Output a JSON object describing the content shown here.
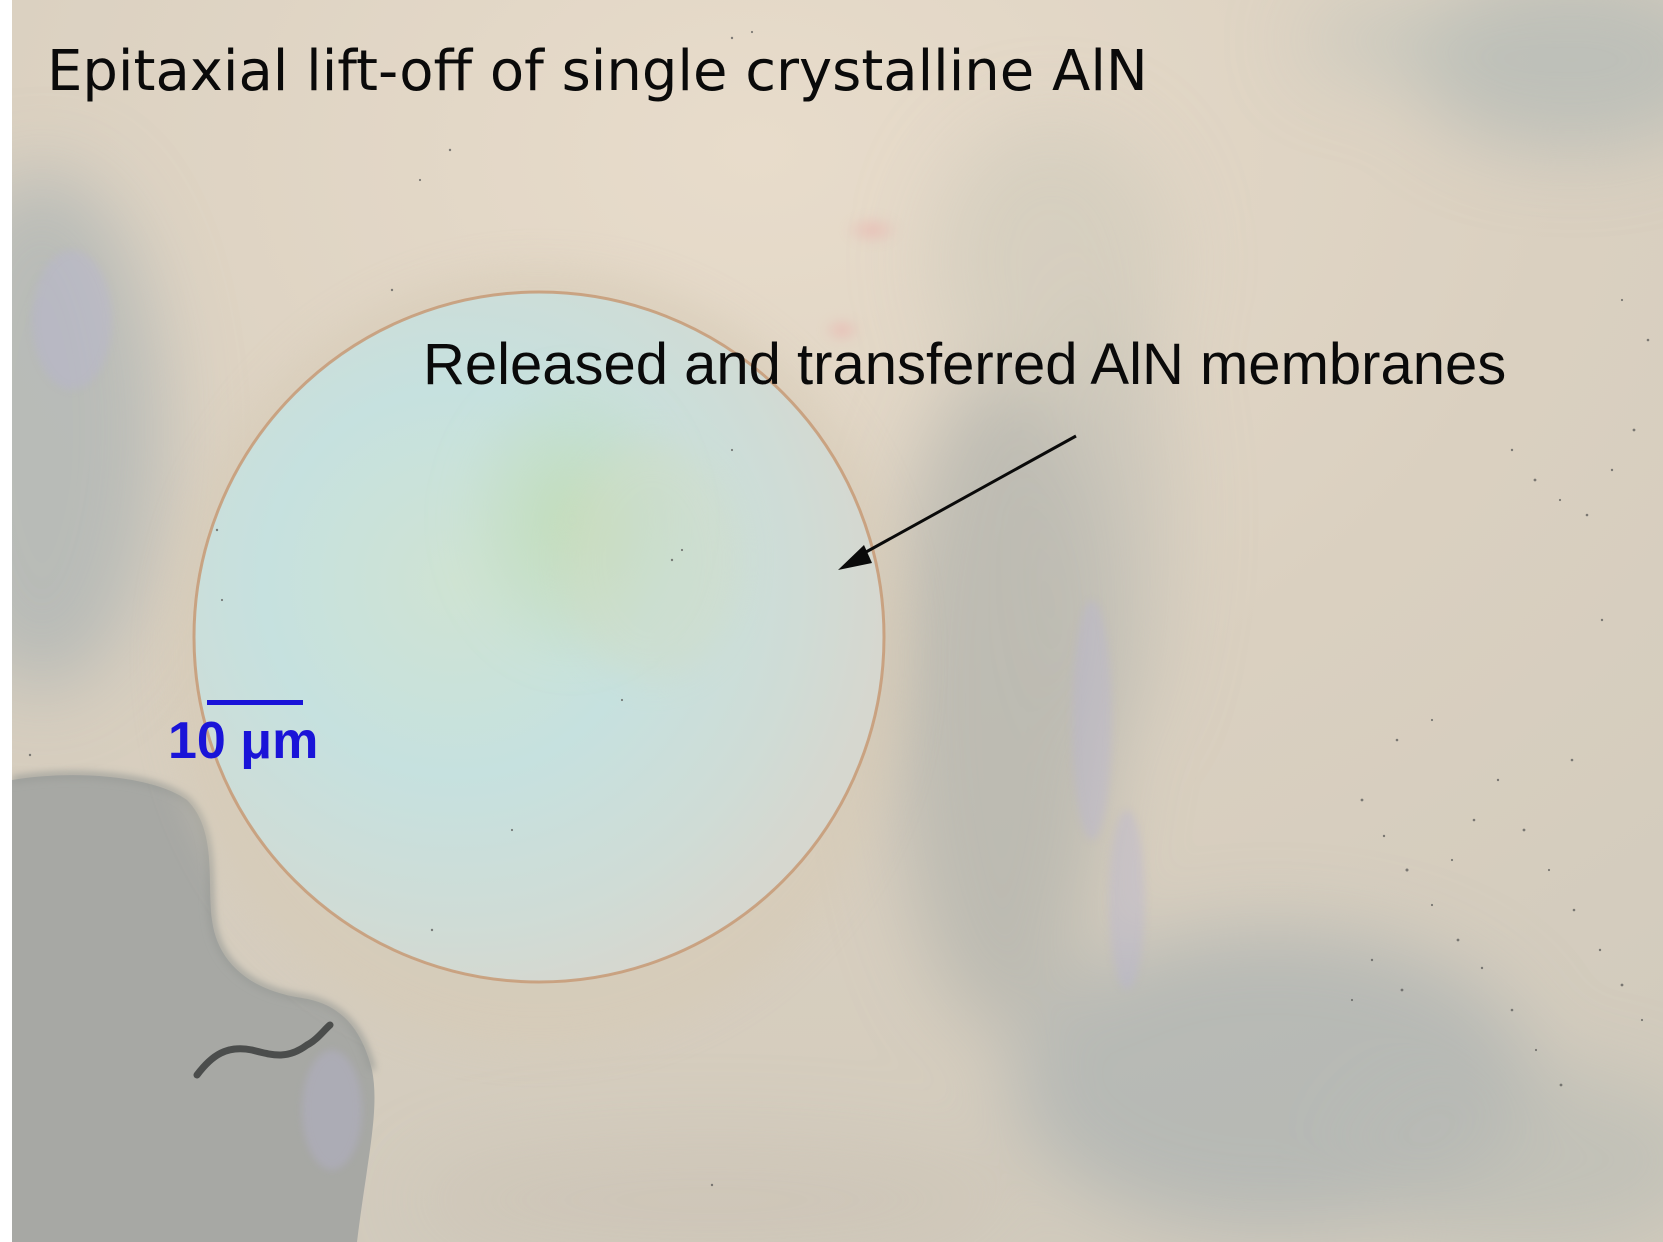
{
  "figure": {
    "title": "Epitaxial lift-off of single crystalline AlN",
    "annotation": "Released and transferred AlN membranes",
    "scale_bar_label": "10 μm"
  },
  "colors": {
    "background": "#dcd2c2",
    "membrane": "#c8e0de",
    "membrane_rim": "#c79a76",
    "shadow": "#a7a8a4",
    "scale_bar": "#1a14d8",
    "text": "#0a0a0a"
  },
  "icons": {
    "annotation_arrow": "arrow-down-left-icon"
  }
}
